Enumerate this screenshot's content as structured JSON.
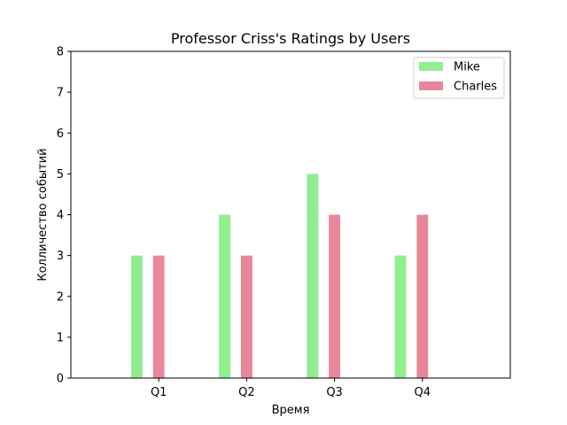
{
  "chart_data": {
    "type": "bar",
    "title": "Professor Criss's Ratings by Users",
    "xlabel": "Время",
    "ylabel": "Колличество событий",
    "categories": [
      "Q1",
      "Q2",
      "Q3",
      "Q4"
    ],
    "ylim": [
      0,
      8
    ],
    "yticks": [
      "0",
      "1",
      "2",
      "3",
      "4",
      "5",
      "6",
      "7",
      "8"
    ],
    "grid": false,
    "legend_position": "top-right",
    "series": [
      {
        "name": "Mike",
        "color": "#90ee90",
        "values": [
          3,
          4,
          5,
          3
        ]
      },
      {
        "name": "Charles",
        "color": "#e8879c",
        "values": [
          3,
          3,
          4,
          4
        ]
      }
    ]
  }
}
